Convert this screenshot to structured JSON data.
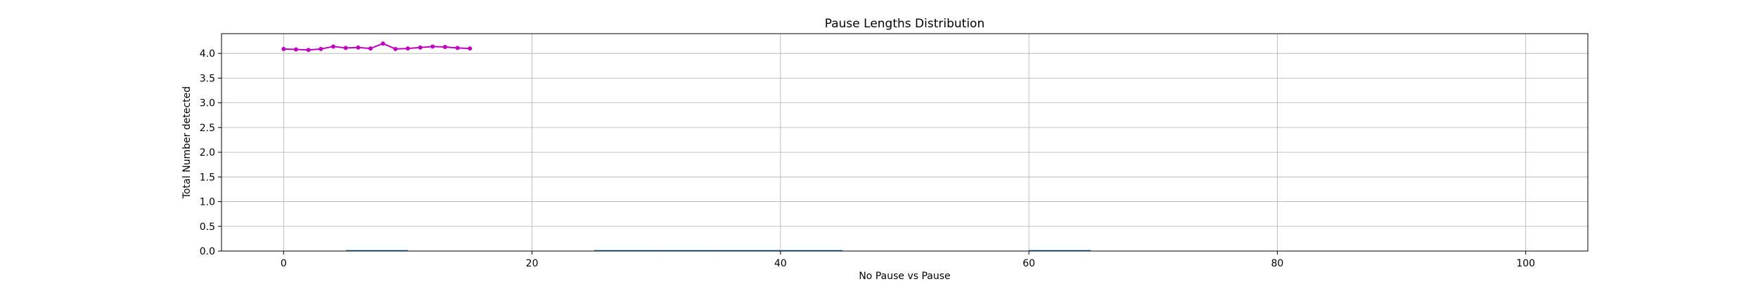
{
  "chart_data": {
    "type": "line",
    "title": "Pause Lengths Distribution",
    "xlabel": "No Pause vs Pause",
    "ylabel": "Total Number detected",
    "xlim": [
      -5,
      105
    ],
    "ylim": [
      0.0,
      4.4
    ],
    "xticks": [
      0,
      20,
      40,
      60,
      80,
      100
    ],
    "yticks": [
      0.0,
      0.5,
      1.0,
      1.5,
      2.0,
      2.5,
      3.0,
      3.5,
      4.0
    ],
    "xtick_labels": [
      "0",
      "20",
      "40",
      "60",
      "80",
      "100"
    ],
    "ytick_labels": [
      "0.0",
      "0.5",
      "1.0",
      "1.5",
      "2.0",
      "2.5",
      "3.0",
      "3.5",
      "4.0"
    ],
    "grid": true,
    "bars": {
      "color": "#1f77b4",
      "width": 5,
      "x": [
        5,
        25,
        30,
        35,
        40,
        60
      ],
      "values": [
        0.02,
        0.02,
        0.02,
        0.02,
        0.02,
        0.02
      ]
    },
    "line": {
      "color": "#c000c0",
      "x": [
        0,
        1,
        2,
        3,
        4,
        5,
        6,
        7,
        8,
        9,
        10,
        11,
        12,
        13,
        14,
        15
      ],
      "y": [
        4.09,
        4.08,
        4.07,
        4.09,
        4.14,
        4.11,
        4.12,
        4.1,
        4.2,
        4.09,
        4.1,
        4.12,
        4.14,
        4.13,
        4.11,
        4.1
      ]
    }
  }
}
